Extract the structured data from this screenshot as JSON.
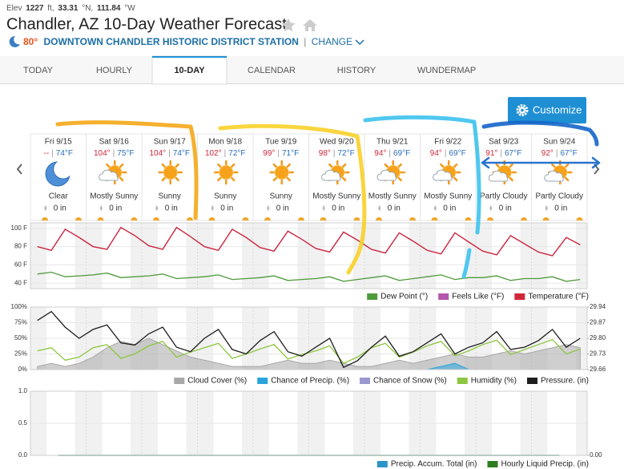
{
  "header": {
    "elev_label": "Elev",
    "elev": "1227",
    "elev_unit": "ft,",
    "lat": "33.31",
    "lat_unit": "°N,",
    "lon": "111.84",
    "lon_unit": "°W",
    "title": "Chandler, AZ 10-Day Weather Forecast",
    "current_temp": "80°",
    "station": "DOWNTOWN CHANDLER HISTORIC DISTRICT STATION",
    "separator": "|",
    "change": "CHANGE"
  },
  "tabs": [
    "TODAY",
    "HOURLY",
    "10-DAY",
    "CALENDAR",
    "HISTORY",
    "WUNDERMAP"
  ],
  "active_tab": 2,
  "customize": "Customize",
  "hi_lo_separator": "|",
  "days": [
    {
      "date": "Fri 9/15",
      "hi": "--",
      "lo": "74°F",
      "condition": "Clear",
      "precip": "0 in"
    },
    {
      "date": "Sat 9/16",
      "hi": "104°",
      "lo": "75°F",
      "condition": "Mostly Sunny",
      "precip": "0 in"
    },
    {
      "date": "Sun 9/17",
      "hi": "104°",
      "lo": "74°F",
      "condition": "Sunny",
      "precip": "0 in"
    },
    {
      "date": "Mon 9/18",
      "hi": "102°",
      "lo": "72°F",
      "condition": "Sunny",
      "precip": "0 in"
    },
    {
      "date": "Tue 9/19",
      "hi": "99°",
      "lo": "71°F",
      "condition": "Sunny",
      "precip": "0 in"
    },
    {
      "date": "Wed 9/20",
      "hi": "98°",
      "lo": "72°F",
      "condition": "Mostly Sunny",
      "precip": "0 in"
    },
    {
      "date": "Thu 9/21",
      "hi": "94°",
      "lo": "69°F",
      "condition": "Mostly Sunny",
      "precip": "0 in"
    },
    {
      "date": "Fri 9/22",
      "hi": "94°",
      "lo": "69°F",
      "condition": "Mostly Sunny",
      "precip": "0 in"
    },
    {
      "date": "Sat 9/23",
      "hi": "91°",
      "lo": "67°F",
      "condition": "Partly Cloudy",
      "precip": "0 in"
    },
    {
      "date": "Sun 9/24",
      "hi": "92°",
      "lo": "67°F",
      "condition": "Partly Cloudy",
      "precip": "0 in"
    }
  ],
  "charts": [
    {
      "type": "line",
      "ylim": [
        34,
        106
      ],
      "yticks": [
        {
          "value": 100,
          "label": "100 F"
        },
        {
          "value": 80,
          "label": "80 F"
        },
        {
          "value": 60,
          "label": "60 F"
        },
        {
          "value": 40,
          "label": "40 F"
        }
      ],
      "grid": true,
      "series": [
        {
          "name": "Dew Point (°)",
          "color": "#4f9a3c",
          "values": [
            50,
            52,
            47,
            48,
            49,
            51,
            46,
            47,
            48,
            50,
            45,
            46,
            47,
            49,
            44,
            45,
            46,
            48,
            43,
            44,
            45,
            47,
            42,
            44,
            46,
            48,
            43,
            45,
            47,
            49,
            44,
            46,
            46,
            48,
            43,
            45,
            45,
            47,
            42,
            44
          ]
        },
        {
          "name": "Feels Like (°F)",
          "color": "#b456b0",
          "values": [
            80,
            76,
            99,
            90,
            80,
            77,
            101,
            92,
            81,
            77,
            101,
            91,
            80,
            76,
            99,
            90,
            79,
            75,
            97,
            88,
            78,
            74,
            96,
            87,
            77,
            73,
            95,
            86,
            76,
            72,
            95,
            85,
            75,
            71,
            92,
            83,
            74,
            70,
            90,
            82
          ]
        },
        {
          "name": "Temperature (°F)",
          "color": "#d0283a",
          "values": [
            80,
            76,
            99,
            90,
            80,
            77,
            101,
            92,
            81,
            77,
            101,
            91,
            80,
            76,
            99,
            90,
            79,
            75,
            97,
            88,
            78,
            74,
            96,
            87,
            77,
            73,
            95,
            86,
            76,
            72,
            95,
            85,
            75,
            71,
            92,
            83,
            74,
            70,
            90,
            82
          ]
        }
      ]
    },
    {
      "type": "line",
      "ylim": [
        0,
        100
      ],
      "yticks": [
        {
          "value": 100,
          "label": "100%"
        },
        {
          "value": 75,
          "label": "75%"
        },
        {
          "value": 50,
          "label": "50%"
        },
        {
          "value": 25,
          "label": "25%"
        },
        {
          "value": 0,
          "label": "0%"
        }
      ],
      "y2lim": [
        29.66,
        29.94
      ],
      "y2ticks": [
        29.94,
        29.87,
        {
          "value": 29.8,
          "label": "29.80"
        },
        29.73,
        29.66
      ],
      "grid": true,
      "series": [
        {
          "name": "Cloud Cover (%)",
          "color": "#a8a8a8",
          "area": true,
          "values": [
            5,
            10,
            5,
            10,
            20,
            35,
            45,
            40,
            50,
            40,
            30,
            20,
            15,
            10,
            5,
            5,
            5,
            10,
            15,
            10,
            10,
            15,
            10,
            5,
            5,
            10,
            15,
            10,
            15,
            20,
            25,
            20,
            20,
            25,
            30,
            25,
            30,
            35,
            40,
            35
          ]
        },
        {
          "name": "Chance of Precip. (%)",
          "color": "#2aa3dc",
          "area": true,
          "values": [
            0,
            0,
            0,
            0,
            0,
            0,
            0,
            0,
            0,
            0,
            0,
            0,
            0,
            0,
            0,
            0,
            0,
            0,
            0,
            0,
            0,
            0,
            0,
            0,
            0,
            0,
            0,
            0,
            0,
            5,
            10,
            0,
            0,
            0,
            0,
            0,
            0,
            0,
            0,
            0
          ]
        },
        {
          "name": "Chance of Snow (%)",
          "color": "#9a98cf",
          "area": true,
          "values": [
            0,
            0,
            0,
            0,
            0,
            0,
            0,
            0,
            0,
            0,
            0,
            0,
            0,
            0,
            0,
            0,
            0,
            0,
            0,
            0,
            0,
            0,
            0,
            0,
            0,
            0,
            0,
            0,
            0,
            0,
            0,
            0,
            0,
            0,
            0,
            0,
            0,
            0,
            0,
            0
          ]
        },
        {
          "name": "Humidity (%)",
          "color": "#8dc63f",
          "values": [
            30,
            35,
            15,
            20,
            35,
            40,
            18,
            25,
            38,
            45,
            20,
            28,
            35,
            42,
            18,
            25,
            33,
            40,
            17,
            24,
            30,
            38,
            10,
            20,
            35,
            42,
            20,
            28,
            38,
            45,
            22,
            30,
            40,
            47,
            24,
            32,
            40,
            48,
            25,
            33
          ]
        },
        {
          "name": "Pressure. (in)",
          "color": "#1e1e1e",
          "axis": "y2",
          "values": [
            29.88,
            29.92,
            29.85,
            29.8,
            29.84,
            29.86,
            29.78,
            29.77,
            29.82,
            29.85,
            29.76,
            29.74,
            29.8,
            29.84,
            29.75,
            29.73,
            29.79,
            29.83,
            29.74,
            29.72,
            29.76,
            29.8,
            29.67,
            29.7,
            29.76,
            29.81,
            29.72,
            29.74,
            29.78,
            29.82,
            29.73,
            29.76,
            29.78,
            29.83,
            29.75,
            29.76,
            29.79,
            29.84,
            29.76,
            29.8
          ]
        }
      ]
    },
    {
      "type": "line",
      "ylim": [
        0,
        1
      ],
      "yticks": [
        {
          "value": 1,
          "label": "1.0"
        },
        0.5,
        {
          "value": 0,
          "label": "0.0"
        }
      ],
      "y2lim": [
        0,
        1
      ],
      "y2ticks": [
        {
          "value": 0,
          "label": "0.00"
        }
      ],
      "grid": true,
      "series": [
        {
          "name": "Precip. Accum. Total (in)",
          "color": "#2b94c9",
          "values": [
            0,
            0,
            0,
            0,
            0,
            0,
            0,
            0,
            0,
            0
          ]
        },
        {
          "name": "Hourly Liquid Precip. (in)",
          "color": "#2e7d1e",
          "values": [
            0,
            0,
            0,
            0,
            0,
            0,
            0,
            0,
            0,
            0
          ]
        }
      ]
    }
  ]
}
